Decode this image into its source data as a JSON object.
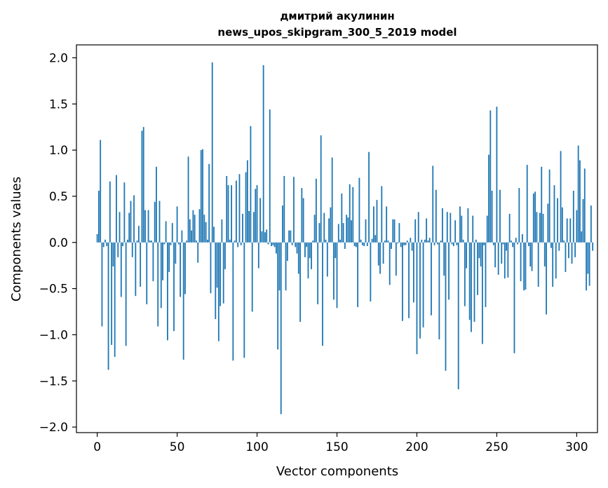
{
  "chart_data": {
    "type": "bar",
    "title_line1": "дмитрий акулинин",
    "title_line2": "news_upos_skipgram_300_5_2019 model",
    "xlabel": "Vector components",
    "ylabel": "Components values",
    "xlim": [
      -13,
      313
    ],
    "ylim": [
      -2.06,
      2.14
    ],
    "x_ticks": [
      0,
      50,
      100,
      150,
      200,
      250,
      300
    ],
    "y_ticks": [
      2.0,
      1.5,
      1.0,
      0.5,
      0.0,
      -0.5,
      -1.0,
      -1.5,
      -2.0
    ],
    "x_tick_labels": [
      "0",
      "50",
      "100",
      "150",
      "200",
      "250",
      "300"
    ],
    "y_tick_labels": [
      "2.0",
      "1.5",
      "1.0",
      "0.5",
      "0.0",
      "−0.5",
      "−1.0",
      "−1.5",
      "−2.0"
    ],
    "bar_color": "#1f77b4",
    "grid": false,
    "values": [
      0.09,
      0.56,
      1.11,
      -0.91,
      -0.05,
      0.03,
      -0.04,
      -1.38,
      0.66,
      -1.11,
      -0.26,
      -1.24,
      0.73,
      -0.16,
      0.33,
      -0.59,
      -0.04,
      0.65,
      -1.12,
      0.03,
      0.32,
      0.45,
      -0.16,
      0.51,
      -0.58,
      0.02,
      0.18,
      -0.48,
      1.21,
      1.25,
      0.35,
      -0.67,
      0.35,
      0.02,
      0.02,
      -0.42,
      0.44,
      0.82,
      -0.91,
      0.45,
      -0.71,
      -0.41,
      -0.02,
      0.23,
      -1.06,
      -0.32,
      -0.03,
      0.21,
      -0.96,
      -0.23,
      0.39,
      -0.02,
      -0.59,
      0.13,
      -1.27,
      -0.56,
      0.02,
      0.93,
      0.25,
      0.13,
      0.35,
      0.3,
      0.02,
      -0.22,
      0.36,
      1.0,
      1.01,
      0.3,
      0.22,
      0.03,
      0.85,
      -0.55,
      1.95,
      0.17,
      -0.83,
      -0.49,
      -1.07,
      -0.69,
      0.25,
      -0.66,
      -0.29,
      0.72,
      0.62,
      0.03,
      0.62,
      -1.28,
      0.02,
      0.67,
      -0.05,
      0.74,
      -0.03,
      0.31,
      -1.25,
      0.76,
      0.89,
      0.34,
      1.26,
      -0.75,
      0.33,
      0.58,
      0.62,
      -0.28,
      0.48,
      0.12,
      1.92,
      0.11,
      0.14,
      -0.02,
      1.44,
      -0.04,
      -0.03,
      -0.05,
      -0.12,
      -1.16,
      -0.52,
      -1.86,
      0.4,
      0.72,
      -0.52,
      -0.2,
      0.13,
      0.13,
      -0.03,
      0.71,
      -0.05,
      -0.12,
      -0.34,
      -0.86,
      0.59,
      0.48,
      -0.16,
      -0.05,
      -0.39,
      -0.17,
      -0.29,
      0.02,
      0.3,
      0.69,
      -0.67,
      0.21,
      1.16,
      -1.12,
      0.32,
      0.03,
      -0.37,
      0.26,
      0.38,
      0.92,
      -0.62,
      -0.17,
      -0.71,
      0.2,
      0.03,
      0.53,
      0.21,
      -0.07,
      0.3,
      0.27,
      0.63,
      0.24,
      0.6,
      -0.04,
      -0.05,
      -0.7,
      0.7,
      0.03,
      -0.03,
      -0.04,
      0.25,
      -0.04,
      0.98,
      -0.64,
      0.04,
      0.39,
      0.08,
      0.46,
      -0.25,
      -0.34,
      0.61,
      -0.23,
      0.02,
      0.39,
      0.02,
      -0.46,
      -0.07,
      0.25,
      0.25,
      -0.36,
      -0.01,
      0.21,
      -0.05,
      -0.85,
      -0.03,
      -0.03,
      0.02,
      -0.82,
      0.05,
      -0.09,
      -0.65,
      0.25,
      -1.21,
      0.33,
      -1.04,
      0.03,
      -0.92,
      0.03,
      0.26,
      0.02,
      0.05,
      -0.79,
      0.83,
      -0.03,
      0.57,
      -0.02,
      -1.05,
      0.02,
      0.37,
      -0.36,
      -1.39,
      0.33,
      -0.62,
      0.32,
      -0.02,
      -0.04,
      0.24,
      -0.03,
      -1.59,
      0.39,
      0.29,
      0.03,
      -0.69,
      -0.28,
      0.37,
      -0.84,
      -0.97,
      0.29,
      -0.86,
      0.03,
      -0.57,
      -0.17,
      -0.26,
      -1.1,
      -0.03,
      -0.7,
      0.29,
      0.95,
      1.43,
      0.56,
      -0.03,
      -0.27,
      1.47,
      -0.35,
      0.57,
      -0.23,
      -0.02,
      -0.39,
      -0.09,
      -0.38,
      0.31,
      0.02,
      -0.05,
      -1.2,
      0.05,
      -0.02,
      0.59,
      -0.42,
      0.09,
      -0.52,
      -0.51,
      0.84,
      -0.04,
      -0.26,
      -0.31,
      0.53,
      0.55,
      0.33,
      -0.48,
      0.32,
      0.82,
      0.31,
      -0.26,
      -0.78,
      0.42,
      0.79,
      -0.06,
      -0.48,
      0.62,
      -0.39,
      0.48,
      -0.09,
      0.99,
      0.38,
      0.02,
      -0.32,
      0.26,
      -0.17,
      0.26,
      -0.23,
      0.56,
      -0.16,
      0.35,
      1.05,
      0.89,
      0.12,
      0.47,
      0.8,
      -0.52,
      -0.34,
      -0.47,
      0.4,
      -0.09
    ]
  }
}
